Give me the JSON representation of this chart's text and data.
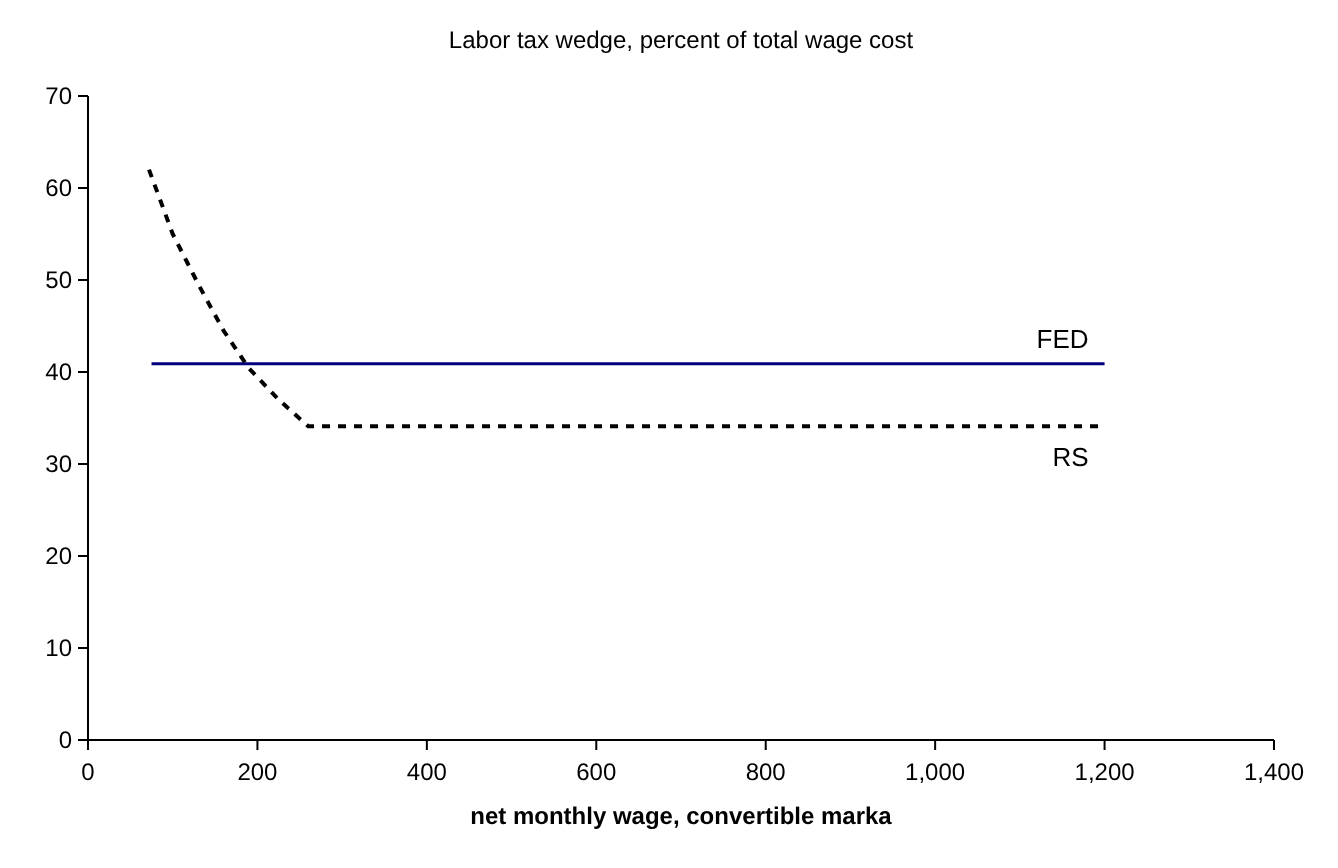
{
  "chart_data": {
    "type": "line",
    "title": "Labor tax wedge, percent of total wage cost",
    "xlabel": "net monthly wage, convertible marka",
    "xlim": [
      0,
      1400
    ],
    "xticks": [
      0,
      200,
      400,
      600,
      800,
      {
        "value": 1000,
        "label": "1,000"
      },
      {
        "value": 1200,
        "label": "1,200"
      },
      {
        "value": 1400,
        "label": "1,400"
      }
    ],
    "ylim": [
      0,
      70
    ],
    "yticks": [
      0,
      10,
      20,
      30,
      40,
      50,
      60,
      70
    ],
    "grid": false,
    "series": [
      {
        "name": "FED",
        "color": "#000080",
        "line_style": "solid",
        "x": [
          75,
          1200
        ],
        "values": [
          40.9,
          40.9
        ]
      },
      {
        "name": "RS",
        "color": "#000000",
        "line_style": "dashed",
        "x": [
          72,
          100,
          131,
          160,
          190,
          225,
          260,
          1200
        ],
        "values": [
          62,
          55,
          49.4,
          44.5,
          40.4,
          37,
          34.1,
          34.1
        ]
      }
    ]
  }
}
